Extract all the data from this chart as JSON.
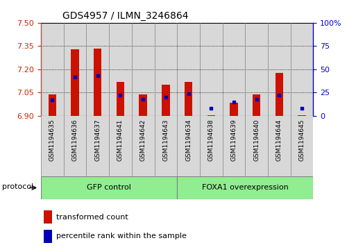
{
  "title": "GDS4957 / ILMN_3246864",
  "samples": [
    "GSM1194635",
    "GSM1194636",
    "GSM1194637",
    "GSM1194641",
    "GSM1194642",
    "GSM1194643",
    "GSM1194634",
    "GSM1194638",
    "GSM1194639",
    "GSM1194640",
    "GSM1194644",
    "GSM1194645"
  ],
  "red_values": [
    7.04,
    7.33,
    7.335,
    7.12,
    7.04,
    7.1,
    7.12,
    6.905,
    6.985,
    7.04,
    7.175,
    6.905
  ],
  "blue_values_pct": [
    17,
    42,
    43,
    22,
    18,
    20,
    24,
    8,
    15,
    18,
    22,
    8
  ],
  "y_min": 6.9,
  "y_max": 7.5,
  "y_ticks_left": [
    6.9,
    7.05,
    7.2,
    7.35,
    7.5
  ],
  "y_ticks_right_pct": [
    0,
    25,
    50,
    75,
    100
  ],
  "left_color": "#cc2200",
  "right_color": "#0000cc",
  "bar_color": "#cc1100",
  "blue_dot_color": "#0000bb",
  "group1_label": "GFP control",
  "group2_label": "FOXA1 overexpression",
  "protocol_label": "protocol",
  "group1_count": 6,
  "group2_count": 6,
  "legend_red": "transformed count",
  "legend_blue": "percentile rank within the sample",
  "bar_width": 0.35,
  "base_value": 6.9,
  "cell_bg": "#d8d8d8",
  "group_bg": "#90ee90",
  "fig_width": 5.13,
  "fig_height": 3.63,
  "dpi": 100
}
